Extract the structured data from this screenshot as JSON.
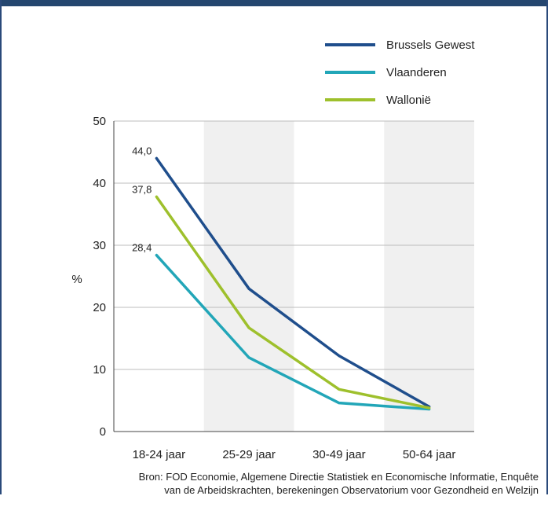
{
  "chart_data": {
    "type": "line",
    "categories": [
      "18-24 jaar",
      "25-29 jaar",
      "30-49 jaar",
      "50-64 jaar"
    ],
    "series": [
      {
        "name": "Brussels Gewest",
        "color": "#1f4e8c",
        "values": [
          44.0,
          23.0,
          12.2,
          4.0
        ]
      },
      {
        "name": "Vlaanderen",
        "color": "#22a6b8",
        "values": [
          28.4,
          11.9,
          4.6,
          3.6
        ]
      },
      {
        "name": "Wallonië",
        "color": "#9ec02c",
        "values": [
          37.8,
          16.7,
          6.8,
          3.8
        ]
      }
    ],
    "data_labels": [
      "44,0",
      "37,8",
      "28,4"
    ],
    "ylabel": "%",
    "ylim": [
      0,
      50
    ],
    "yticks": [
      "0",
      "10",
      "20",
      "30",
      "40",
      "50"
    ],
    "grid": true,
    "legend": "top-right"
  },
  "source": {
    "line1": "Bron: FOD Economie, Algemene Directie Statistiek en Economische Informatie, Enquête",
    "line2": "van de Arbeidskrachten, berekeningen Observatorium voor Gezondheid en Welzijn"
  }
}
